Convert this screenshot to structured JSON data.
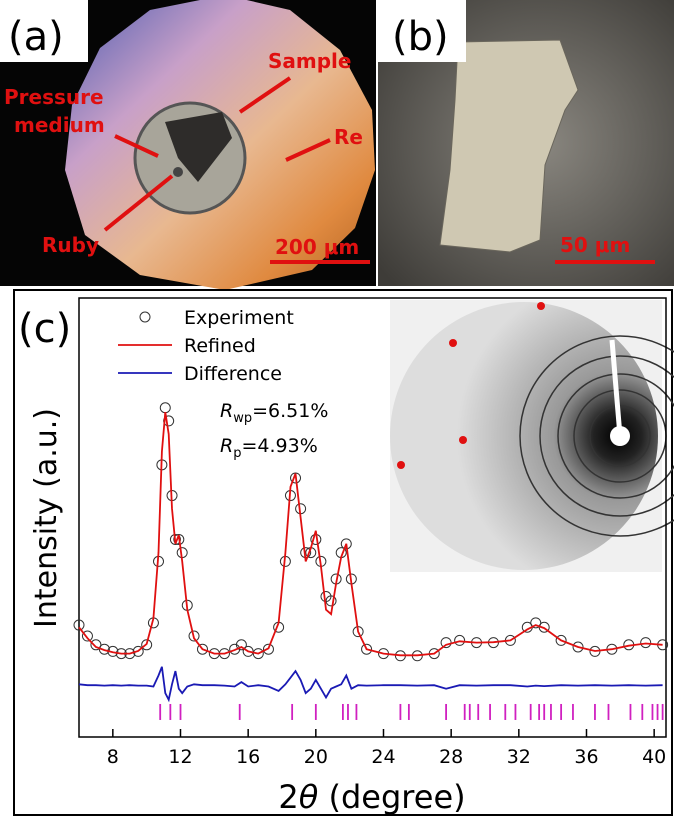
{
  "panels": {
    "a": {
      "label": "(a)",
      "sample": "Sample",
      "pressure_medium": [
        "Pressure",
        "medium"
      ],
      "re": "Re",
      "ruby": "Ruby",
      "scale": "200 μm"
    },
    "b": {
      "label": "(b)",
      "scale": "50 μm"
    }
  },
  "chart_data": {
    "type": "line",
    "panel_label": "(c)",
    "x_label": {
      "prefix": "2",
      "symbol": "θ",
      "suffix": " (degree)"
    },
    "y_label": "Intensity (a.u.)",
    "annotation": {
      "rwp": {
        "symbol": "R",
        "sub": "wp",
        "text": "=6.51%"
      },
      "rp": {
        "symbol": "R",
        "sub": "p",
        "text": "=4.93%"
      }
    },
    "xlim": [
      6,
      40.7
    ],
    "xticks": [
      8,
      12,
      16,
      20,
      24,
      28,
      32,
      36,
      40
    ],
    "ylim": [
      0,
      100
    ],
    "x": [
      6,
      6.5,
      7,
      7.5,
      8,
      8.5,
      9,
      9.5,
      10,
      10.4,
      10.7,
      10.9,
      11.1,
      11.3,
      11.5,
      11.7,
      11.9,
      12.1,
      12.4,
      12.8,
      13.3,
      14,
      14.6,
      15.2,
      15.6,
      16,
      16.6,
      17.2,
      17.8,
      18.2,
      18.5,
      18.8,
      19.1,
      19.4,
      19.7,
      20,
      20.3,
      20.6,
      20.9,
      21.2,
      21.5,
      21.8,
      22.1,
      22.5,
      23,
      24,
      25,
      26,
      27,
      27.7,
      28.5,
      29.5,
      30.5,
      31.5,
      32.5,
      33,
      33.5,
      34.5,
      35.5,
      36.5,
      37.5,
      38.5,
      39.5,
      40.5
    ],
    "series": [
      {
        "name": "Experiment",
        "color": "#333333",
        "marker": "circle",
        "values": [
          25.5,
          23,
          21,
          20,
          19.5,
          19,
          19,
          19.5,
          21,
          26,
          40,
          62,
          75,
          72,
          55,
          45,
          45,
          42,
          30,
          23,
          20,
          19,
          19,
          20,
          21,
          19.5,
          19,
          20,
          25,
          40,
          55,
          59,
          52,
          42,
          42,
          45,
          40,
          32,
          31,
          36,
          42,
          44,
          36,
          24,
          20,
          19,
          18.5,
          18.5,
          19,
          21.5,
          22,
          21.5,
          21.5,
          22,
          25,
          26,
          25,
          22,
          20.5,
          19.5,
          20,
          21,
          21.5,
          21
        ]
      },
      {
        "name": "Refined",
        "color": "#e01010",
        "marker": "line",
        "values": [
          25,
          22.5,
          20.5,
          19.8,
          19.3,
          19,
          19,
          19.6,
          21.2,
          27,
          42,
          65,
          74,
          69,
          52,
          44,
          46,
          40,
          29,
          22.5,
          20,
          19,
          19,
          19.8,
          20.5,
          19.5,
          19,
          20.2,
          26,
          42,
          57,
          60,
          50,
          40,
          43,
          47,
          39,
          29,
          28,
          35,
          41,
          44,
          35,
          24,
          20,
          19,
          18.6,
          18.6,
          19,
          21,
          21.8,
          21.5,
          21.6,
          22,
          24.5,
          25.5,
          24.8,
          22,
          20.5,
          19.6,
          20,
          20.8,
          21.3,
          21
        ]
      },
      {
        "name": "Difference",
        "color": "#1a1ab4",
        "marker": "line",
        "values": [
          12,
          11.8,
          11.8,
          11.7,
          11.8,
          11.7,
          11.8,
          11.7,
          11.7,
          11.5,
          14,
          16,
          10,
          8.5,
          12,
          15,
          11,
          10,
          11.5,
          12,
          11.8,
          11.8,
          11.7,
          11.5,
          12.5,
          11.5,
          11.8,
          11.5,
          10.5,
          12,
          13.5,
          15,
          13,
          10,
          11,
          13,
          11,
          9,
          11,
          11.5,
          12,
          14,
          11,
          11.8,
          11.7,
          11.8,
          11.8,
          11.7,
          11.8,
          11,
          11.8,
          11.7,
          11.8,
          11.8,
          11.5,
          11.7,
          11.6,
          11.8,
          11.7,
          11.8,
          11.7,
          11.8,
          11.7,
          11.8
        ]
      }
    ],
    "reflections": {
      "color": "#d020c0",
      "y": 5.7,
      "x": [
        10.8,
        11.4,
        12.0,
        15.5,
        18.6,
        20.0,
        21.6,
        21.9,
        22.4,
        25.0,
        25.5,
        27.7,
        28.8,
        29.1,
        29.6,
        30.3,
        31.2,
        31.8,
        32.7,
        33.2,
        33.5,
        33.9,
        34.5,
        35.2,
        36.5,
        37.3,
        38.6,
        39.3,
        39.9,
        40.2,
        40.5
      ]
    }
  }
}
